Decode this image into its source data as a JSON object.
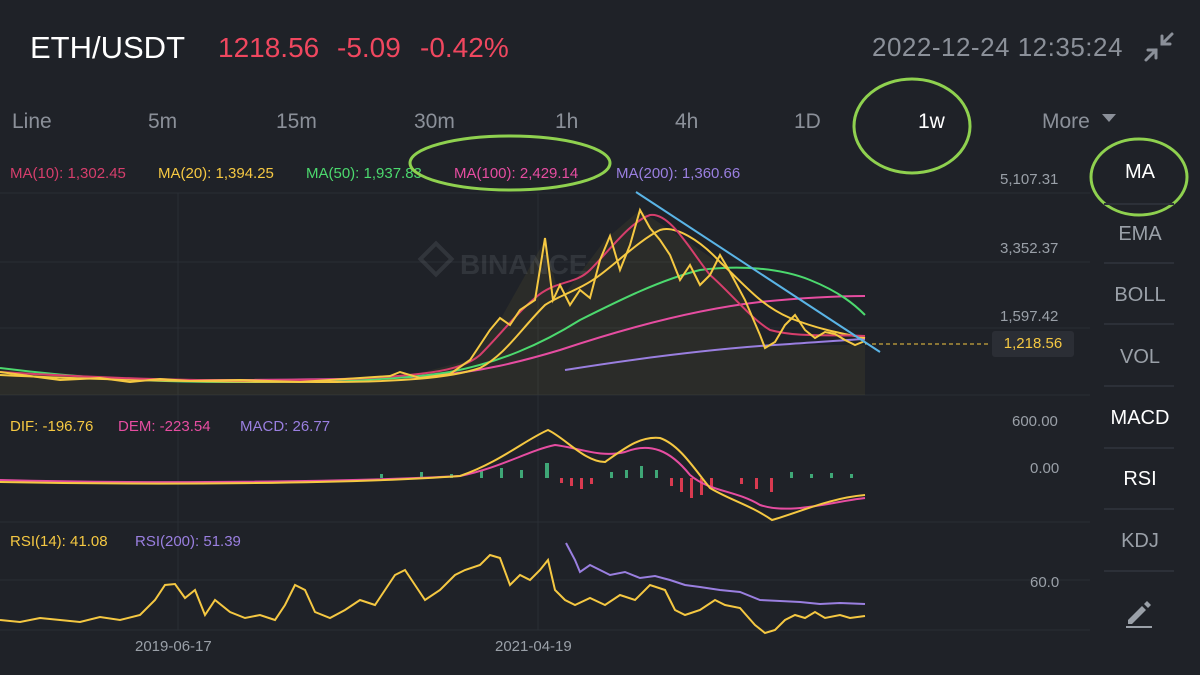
{
  "header": {
    "symbol": "ETH/USDT",
    "price": "1218.56",
    "change": "-5.09",
    "change_pct": "-0.42%",
    "datetime": "2022-12-24 12:35:24"
  },
  "intervals": [
    "Line",
    "5m",
    "15m",
    "30m",
    "1h",
    "4h",
    "1D",
    "1w",
    "More"
  ],
  "selected_interval": "1w",
  "ma_legend": [
    {
      "label": "MA(10): 1,302.45",
      "color": "#d63e6c"
    },
    {
      "label": "MA(20): 1,394.25",
      "color": "#f5c842"
    },
    {
      "label": "MA(50): 1,937.83",
      "color": "#4cd96e"
    },
    {
      "label": "MA(100): 2,429.14",
      "color": "#e64da1"
    },
    {
      "label": "MA(200): 1,360.66",
      "color": "#9a7fe0"
    }
  ],
  "price_axis": [
    "5,107.31",
    "3,352.37",
    "1,597.42"
  ],
  "last_price_tag": "1,218.56",
  "watermark": "BINANCE",
  "macd_legend": [
    {
      "label": "DIF: -196.76",
      "color": "#f5c842"
    },
    {
      "label": "DEM: -223.54",
      "color": "#e64da1"
    },
    {
      "label": "MACD: 26.77",
      "color": "#9a7fe0"
    }
  ],
  "macd_axis": [
    "600.00",
    "0.00"
  ],
  "rsi_legend": [
    {
      "label": "RSI(14): 41.08",
      "color": "#f5c842"
    },
    {
      "label": "RSI(200): 51.39",
      "color": "#9a7fe0"
    }
  ],
  "rsi_axis": [
    "60.0"
  ],
  "time_axis": [
    "2019-06-17",
    "2021-04-19"
  ],
  "side_menu": [
    {
      "label": "MA",
      "active": true
    },
    {
      "label": "EMA",
      "active": false
    },
    {
      "label": "BOLL",
      "active": false
    },
    {
      "label": "VOL",
      "active": false
    },
    {
      "label": "MACD",
      "active": true
    },
    {
      "label": "RSI",
      "active": true
    },
    {
      "label": "KDJ",
      "active": false
    }
  ],
  "icons": {
    "collapse": "collapse-arrows-icon",
    "more": "caret-down-icon",
    "draw": "pencil-icon"
  },
  "colors": {
    "down": "#f0475f",
    "annotation": "#8fd14f",
    "trendline": "#5ab4e6"
  }
}
